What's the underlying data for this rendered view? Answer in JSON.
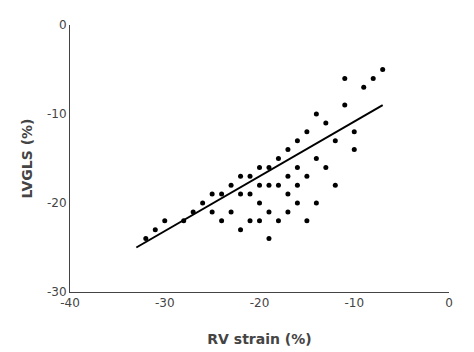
{
  "chart_data": {
    "type": "scatter",
    "xlabel": "RV strain (%)",
    "ylabel": "LVGLS (%)",
    "xlim": [
      -40,
      0
    ],
    "ylim": [
      -30,
      0
    ],
    "xticks": [
      -40,
      -30,
      -20,
      -10,
      0
    ],
    "yticks": [
      0,
      -10,
      -20,
      -30
    ],
    "grid": false,
    "series": [
      {
        "type": "scatter",
        "marker": "circle",
        "color": "#000000",
        "x": [
          -7,
          -8,
          -9,
          -10,
          -10,
          -11,
          -11,
          -12,
          -12,
          -13,
          -13,
          -14,
          -14,
          -14,
          -15,
          -15,
          -15,
          -16,
          -16,
          -16,
          -16,
          -17,
          -17,
          -17,
          -17,
          -18,
          -18,
          -18,
          -19,
          -19,
          -19,
          -19,
          -20,
          -20,
          -20,
          -20,
          -21,
          -21,
          -21,
          -22,
          -22,
          -22,
          -23,
          -23,
          -24,
          -24,
          -25,
          -25,
          -26,
          -27,
          -28,
          -30,
          -31,
          -32
        ],
        "values": [
          -5,
          -6,
          -7,
          -12,
          -14,
          -6,
          -9,
          -13,
          -18,
          -11,
          -16,
          -10,
          -15,
          -20,
          -12,
          -17,
          -22,
          -13,
          -16,
          -18,
          -20,
          -14,
          -17,
          -19,
          -21,
          -15,
          -18,
          -22,
          -16,
          -18,
          -21,
          -24,
          -16,
          -18,
          -20,
          -22,
          -17,
          -19,
          -22,
          -17,
          -19,
          -23,
          -18,
          -21,
          -19,
          -22,
          -19,
          -21,
          -20,
          -21,
          -22,
          -22,
          -23,
          -24
        ]
      },
      {
        "type": "line",
        "line_style": "solid",
        "color": "#000000",
        "x": [
          -33,
          -7
        ],
        "values": [
          -25,
          -9
        ]
      }
    ]
  }
}
